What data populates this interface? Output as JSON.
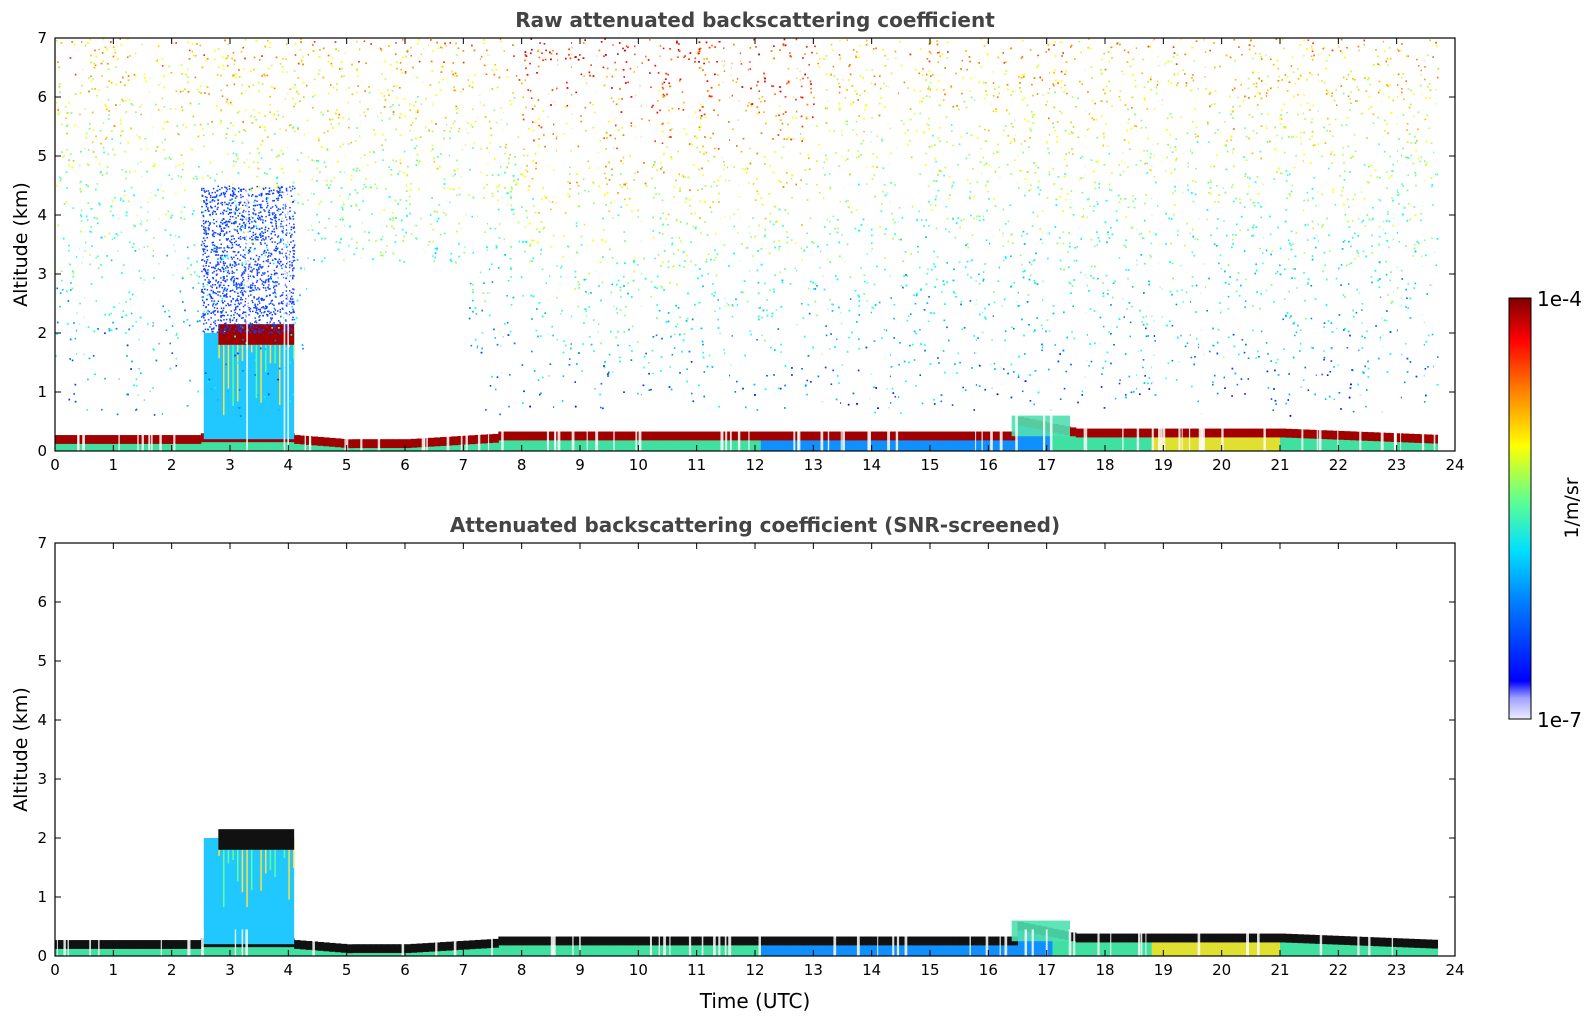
{
  "chart_data": [
    {
      "type": "heatmap",
      "title": "Raw attenuated backscattering coefficient",
      "xlabel": "",
      "ylabel": "Altitude (km)",
      "xlim": [
        0,
        24
      ],
      "ylim": [
        0,
        7
      ],
      "xticks": [
        "0",
        "1",
        "2",
        "3",
        "4",
        "5",
        "6",
        "7",
        "8",
        "9",
        "10",
        "11",
        "12",
        "13",
        "14",
        "15",
        "16",
        "17",
        "18",
        "19",
        "20",
        "21",
        "22",
        "23",
        "24"
      ],
      "yticks": [
        "0",
        "1",
        "2",
        "3",
        "4",
        "5",
        "6",
        "7"
      ],
      "screened": false,
      "features": [
        {
          "name": "boundary layer top",
          "time": [
            0,
            23.7
          ],
          "altitude_km": 0.25
        },
        {
          "name": "cloud layer",
          "time": [
            2.5,
            4.1
          ],
          "altitude_km": 2.0
        },
        {
          "name": "elevated layer",
          "time": [
            16.4,
            17.4
          ],
          "altitude_km": 0.6
        }
      ]
    },
    {
      "type": "heatmap",
      "title": "Attenuated backscattering coefficient (SNR-screened)",
      "xlabel": "Time (UTC)",
      "ylabel": "Altitude (km)",
      "xlim": [
        0,
        24
      ],
      "ylim": [
        0,
        7
      ],
      "xticks": [
        "0",
        "1",
        "2",
        "3",
        "4",
        "5",
        "6",
        "7",
        "8",
        "9",
        "10",
        "11",
        "12",
        "13",
        "14",
        "15",
        "16",
        "17",
        "18",
        "19",
        "20",
        "21",
        "22",
        "23",
        "24"
      ],
      "yticks": [
        "0",
        "1",
        "2",
        "3",
        "4",
        "5",
        "6",
        "7"
      ],
      "screened": true,
      "features": [
        {
          "name": "boundary layer top",
          "time": [
            0,
            23.7
          ],
          "altitude_km": 0.25
        },
        {
          "name": "cloud layer",
          "time": [
            2.5,
            4.1
          ],
          "altitude_km": 2.0
        },
        {
          "name": "elevated layer",
          "time": [
            16.4,
            17.4
          ],
          "altitude_km": 0.6
        }
      ]
    }
  ],
  "colorbar": {
    "label": "1/m/sr",
    "max_label": "1e-4",
    "min_label": "1e-7",
    "colors": [
      "#7f0000",
      "#ff0000",
      "#ff8000",
      "#ffff00",
      "#80ff80",
      "#00ffff",
      "#0080ff",
      "#0000ff",
      "#c8c8ff"
    ]
  }
}
